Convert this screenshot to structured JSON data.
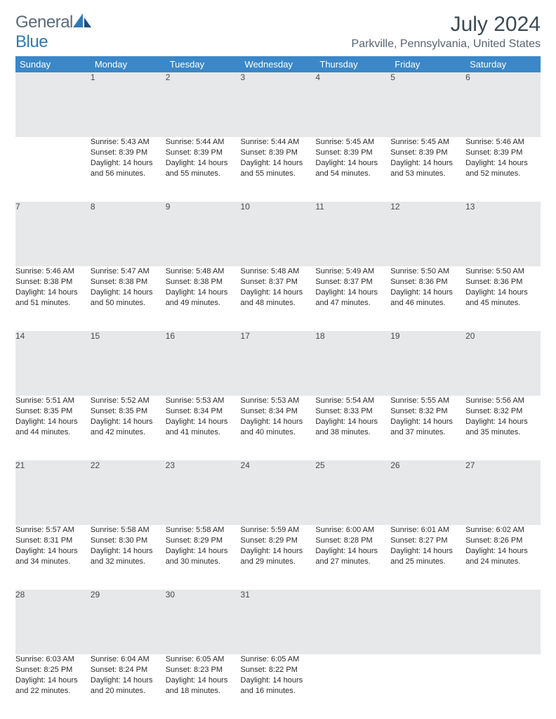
{
  "brand": {
    "word1": "General",
    "word2": "Blue"
  },
  "title": "July 2024",
  "location": "Parkville, Pennsylvania, United States",
  "colors": {
    "header_bg": "#3b87c8",
    "header_text": "#ffffff",
    "daynum_bg": "#e6e8ea",
    "rule": "#2f5f86",
    "brand_gray": "#5a6a78",
    "brand_blue": "#2f78b7"
  },
  "dow": [
    "Sunday",
    "Monday",
    "Tuesday",
    "Wednesday",
    "Thursday",
    "Friday",
    "Saturday"
  ],
  "weeks": [
    [
      null,
      {
        "n": "1",
        "sr": "5:43 AM",
        "ss": "8:39 PM",
        "dl": "14 hours and 56 minutes."
      },
      {
        "n": "2",
        "sr": "5:44 AM",
        "ss": "8:39 PM",
        "dl": "14 hours and 55 minutes."
      },
      {
        "n": "3",
        "sr": "5:44 AM",
        "ss": "8:39 PM",
        "dl": "14 hours and 55 minutes."
      },
      {
        "n": "4",
        "sr": "5:45 AM",
        "ss": "8:39 PM",
        "dl": "14 hours and 54 minutes."
      },
      {
        "n": "5",
        "sr": "5:45 AM",
        "ss": "8:39 PM",
        "dl": "14 hours and 53 minutes."
      },
      {
        "n": "6",
        "sr": "5:46 AM",
        "ss": "8:39 PM",
        "dl": "14 hours and 52 minutes."
      }
    ],
    [
      {
        "n": "7",
        "sr": "5:46 AM",
        "ss": "8:38 PM",
        "dl": "14 hours and 51 minutes."
      },
      {
        "n": "8",
        "sr": "5:47 AM",
        "ss": "8:38 PM",
        "dl": "14 hours and 50 minutes."
      },
      {
        "n": "9",
        "sr": "5:48 AM",
        "ss": "8:38 PM",
        "dl": "14 hours and 49 minutes."
      },
      {
        "n": "10",
        "sr": "5:48 AM",
        "ss": "8:37 PM",
        "dl": "14 hours and 48 minutes."
      },
      {
        "n": "11",
        "sr": "5:49 AM",
        "ss": "8:37 PM",
        "dl": "14 hours and 47 minutes."
      },
      {
        "n": "12",
        "sr": "5:50 AM",
        "ss": "8:36 PM",
        "dl": "14 hours and 46 minutes."
      },
      {
        "n": "13",
        "sr": "5:50 AM",
        "ss": "8:36 PM",
        "dl": "14 hours and 45 minutes."
      }
    ],
    [
      {
        "n": "14",
        "sr": "5:51 AM",
        "ss": "8:35 PM",
        "dl": "14 hours and 44 minutes."
      },
      {
        "n": "15",
        "sr": "5:52 AM",
        "ss": "8:35 PM",
        "dl": "14 hours and 42 minutes."
      },
      {
        "n": "16",
        "sr": "5:53 AM",
        "ss": "8:34 PM",
        "dl": "14 hours and 41 minutes."
      },
      {
        "n": "17",
        "sr": "5:53 AM",
        "ss": "8:34 PM",
        "dl": "14 hours and 40 minutes."
      },
      {
        "n": "18",
        "sr": "5:54 AM",
        "ss": "8:33 PM",
        "dl": "14 hours and 38 minutes."
      },
      {
        "n": "19",
        "sr": "5:55 AM",
        "ss": "8:32 PM",
        "dl": "14 hours and 37 minutes."
      },
      {
        "n": "20",
        "sr": "5:56 AM",
        "ss": "8:32 PM",
        "dl": "14 hours and 35 minutes."
      }
    ],
    [
      {
        "n": "21",
        "sr": "5:57 AM",
        "ss": "8:31 PM",
        "dl": "14 hours and 34 minutes."
      },
      {
        "n": "22",
        "sr": "5:58 AM",
        "ss": "8:30 PM",
        "dl": "14 hours and 32 minutes."
      },
      {
        "n": "23",
        "sr": "5:58 AM",
        "ss": "8:29 PM",
        "dl": "14 hours and 30 minutes."
      },
      {
        "n": "24",
        "sr": "5:59 AM",
        "ss": "8:29 PM",
        "dl": "14 hours and 29 minutes."
      },
      {
        "n": "25",
        "sr": "6:00 AM",
        "ss": "8:28 PM",
        "dl": "14 hours and 27 minutes."
      },
      {
        "n": "26",
        "sr": "6:01 AM",
        "ss": "8:27 PM",
        "dl": "14 hours and 25 minutes."
      },
      {
        "n": "27",
        "sr": "6:02 AM",
        "ss": "8:26 PM",
        "dl": "14 hours and 24 minutes."
      }
    ],
    [
      {
        "n": "28",
        "sr": "6:03 AM",
        "ss": "8:25 PM",
        "dl": "14 hours and 22 minutes."
      },
      {
        "n": "29",
        "sr": "6:04 AM",
        "ss": "8:24 PM",
        "dl": "14 hours and 20 minutes."
      },
      {
        "n": "30",
        "sr": "6:05 AM",
        "ss": "8:23 PM",
        "dl": "14 hours and 18 minutes."
      },
      {
        "n": "31",
        "sr": "6:05 AM",
        "ss": "8:22 PM",
        "dl": "14 hours and 16 minutes."
      },
      null,
      null,
      null
    ]
  ],
  "labels": {
    "sunrise": "Sunrise:",
    "sunset": "Sunset:",
    "daylight": "Daylight:"
  }
}
